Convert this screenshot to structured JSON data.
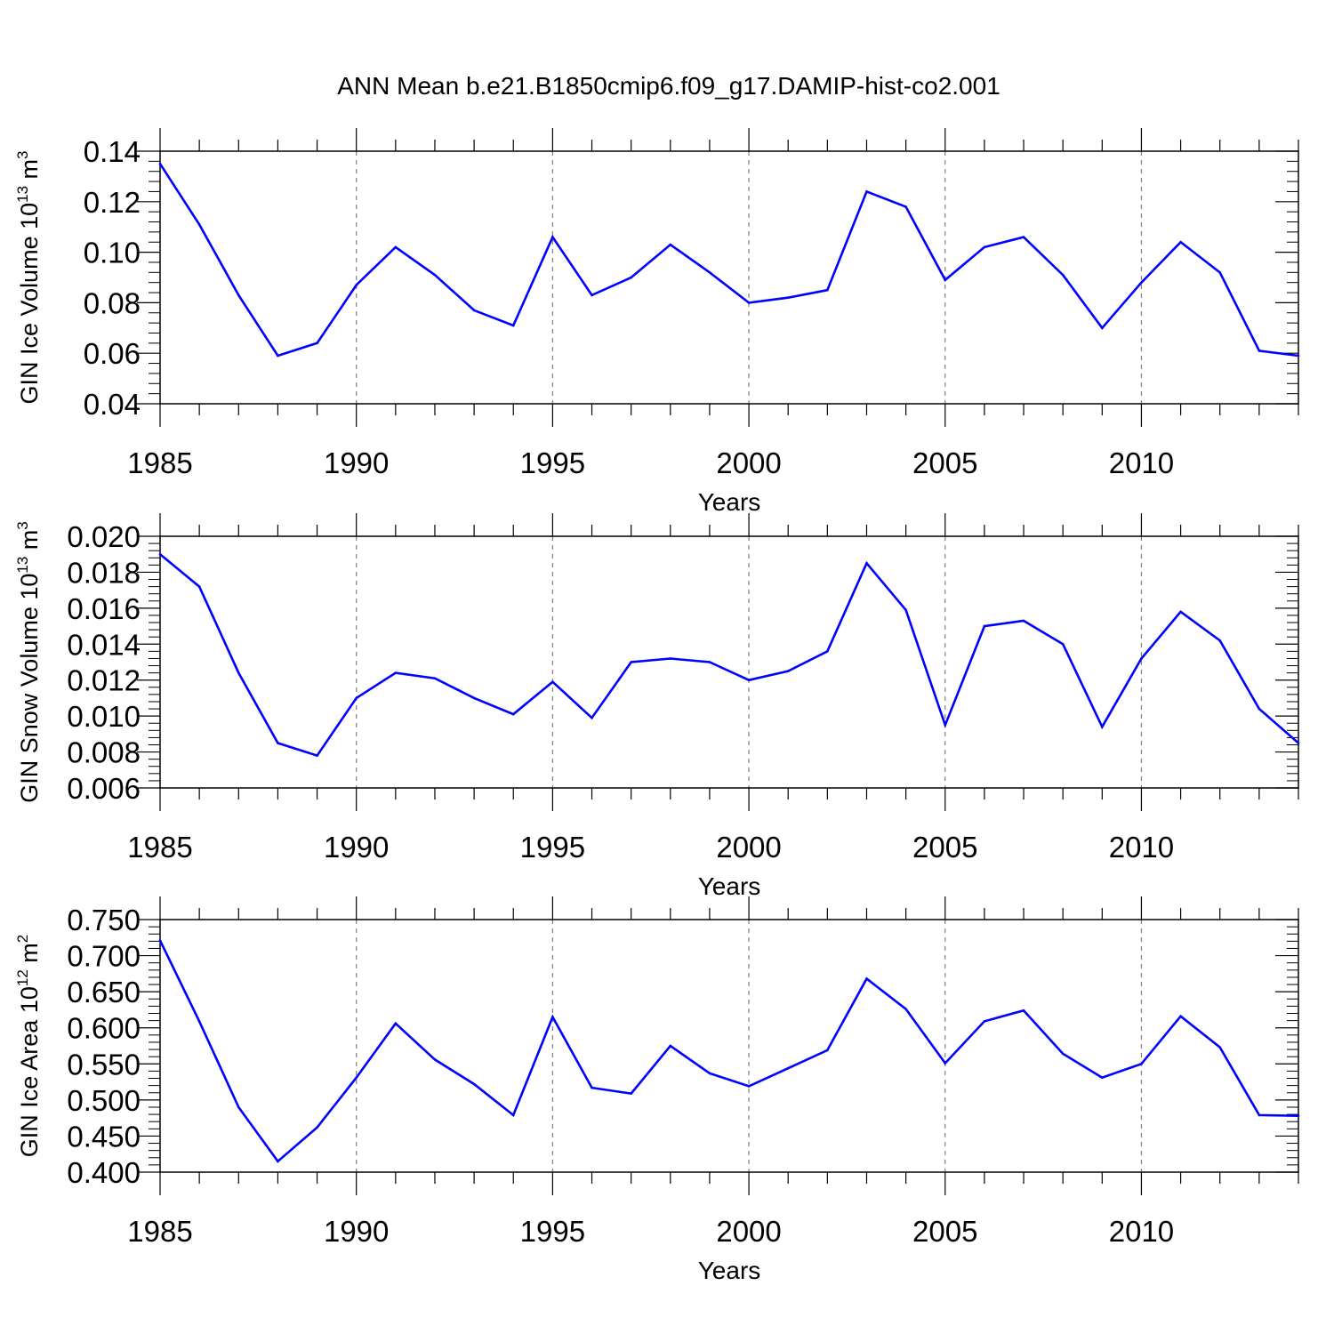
{
  "figure": {
    "title": "ANN Mean b.e21.B1850cmip6.f09_g17.DAMIP-hist-co2.001"
  },
  "chart_data": [
    {
      "type": "line",
      "xlabel": "Years",
      "ylabel": {
        "base": "GIN Ice Volume 10",
        "exp": "13",
        "unit": " m",
        "unit_exp": "3"
      },
      "xlim": [
        1985,
        2014
      ],
      "ylim": [
        0.04,
        0.14
      ],
      "xticks": [
        1985,
        1990,
        1995,
        2000,
        2005,
        2010
      ],
      "yticks": [
        0.04,
        0.06,
        0.08,
        0.1,
        0.12,
        0.14
      ],
      "ytick_labels": [
        "0.04",
        "0.06",
        "0.08",
        "0.10",
        "0.12",
        "0.14"
      ],
      "grid": "x-dashed",
      "line_color": "#0000ff",
      "series": [
        {
          "x": [
            1985,
            1986,
            1987,
            1988,
            1989,
            1990,
            1991,
            1992,
            1993,
            1994,
            1995,
            1996,
            1997,
            1998,
            1999,
            2000,
            2001,
            2002,
            2003,
            2004,
            2005,
            2006,
            2007,
            2008,
            2009,
            2010,
            2011,
            2012,
            2013,
            2014
          ],
          "values": [
            0.135,
            0.111,
            0.083,
            0.059,
            0.064,
            0.087,
            0.102,
            0.091,
            0.077,
            0.071,
            0.106,
            0.083,
            0.09,
            0.103,
            0.092,
            0.08,
            0.082,
            0.085,
            0.124,
            0.118,
            0.089,
            0.102,
            0.106,
            0.091,
            0.07,
            0.088,
            0.104,
            0.092,
            0.061,
            0.059
          ]
        }
      ]
    },
    {
      "type": "line",
      "xlabel": "Years",
      "ylabel": {
        "base": "GIN Snow Volume 10",
        "exp": "13",
        "unit": " m",
        "unit_exp": "3"
      },
      "xlim": [
        1985,
        2014
      ],
      "ylim": [
        0.006,
        0.02
      ],
      "xticks": [
        1985,
        1990,
        1995,
        2000,
        2005,
        2010
      ],
      "yticks": [
        0.006,
        0.008,
        0.01,
        0.012,
        0.014,
        0.016,
        0.018,
        0.02
      ],
      "ytick_labels": [
        "0.006",
        "0.008",
        "0.010",
        "0.012",
        "0.014",
        "0.016",
        "0.018",
        "0.020"
      ],
      "grid": "x-dashed",
      "line_color": "#0000ff",
      "series": [
        {
          "x": [
            1985,
            1986,
            1987,
            1988,
            1989,
            1990,
            1991,
            1992,
            1993,
            1994,
            1995,
            1996,
            1997,
            1998,
            1999,
            2000,
            2001,
            2002,
            2003,
            2004,
            2005,
            2006,
            2007,
            2008,
            2009,
            2010,
            2011,
            2012,
            2013,
            2014
          ],
          "values": [
            0.019,
            0.0172,
            0.0124,
            0.0085,
            0.0078,
            0.011,
            0.0124,
            0.0121,
            0.011,
            0.0101,
            0.0119,
            0.0099,
            0.013,
            0.0132,
            0.013,
            0.012,
            0.0125,
            0.0136,
            0.0185,
            0.0159,
            0.0095,
            0.015,
            0.0153,
            0.014,
            0.0094,
            0.0132,
            0.0158,
            0.0142,
            0.0104,
            0.0085
          ]
        }
      ]
    },
    {
      "type": "line",
      "xlabel": "Years",
      "ylabel": {
        "base": "GIN Ice Area 10",
        "exp": "12",
        "unit": " m",
        "unit_exp": "2"
      },
      "xlim": [
        1985,
        2014
      ],
      "ylim": [
        0.4,
        0.75
      ],
      "xticks": [
        1985,
        1990,
        1995,
        2000,
        2005,
        2010
      ],
      "yticks": [
        0.4,
        0.45,
        0.5,
        0.55,
        0.6,
        0.65,
        0.7,
        0.75
      ],
      "ytick_labels": [
        "0.400",
        "0.450",
        "0.500",
        "0.550",
        "0.600",
        "0.650",
        "0.700",
        "0.750"
      ],
      "grid": "x-dashed",
      "line_color": "#0000ff",
      "series": [
        {
          "x": [
            1985,
            1986,
            1987,
            1988,
            1989,
            1990,
            1991,
            1992,
            1993,
            1994,
            1995,
            1996,
            1997,
            1998,
            1999,
            2000,
            2001,
            2002,
            2003,
            2004,
            2005,
            2006,
            2007,
            2008,
            2009,
            2010,
            2011,
            2012,
            2013,
            2014
          ],
          "values": [
            0.721,
            0.609,
            0.49,
            0.415,
            0.462,
            0.531,
            0.606,
            0.556,
            0.522,
            0.479,
            0.615,
            0.517,
            0.509,
            0.575,
            0.537,
            0.519,
            0.544,
            0.569,
            0.668,
            0.626,
            0.551,
            0.609,
            0.624,
            0.564,
            0.531,
            0.55,
            0.616,
            0.573,
            0.479,
            0.478
          ]
        }
      ]
    }
  ]
}
